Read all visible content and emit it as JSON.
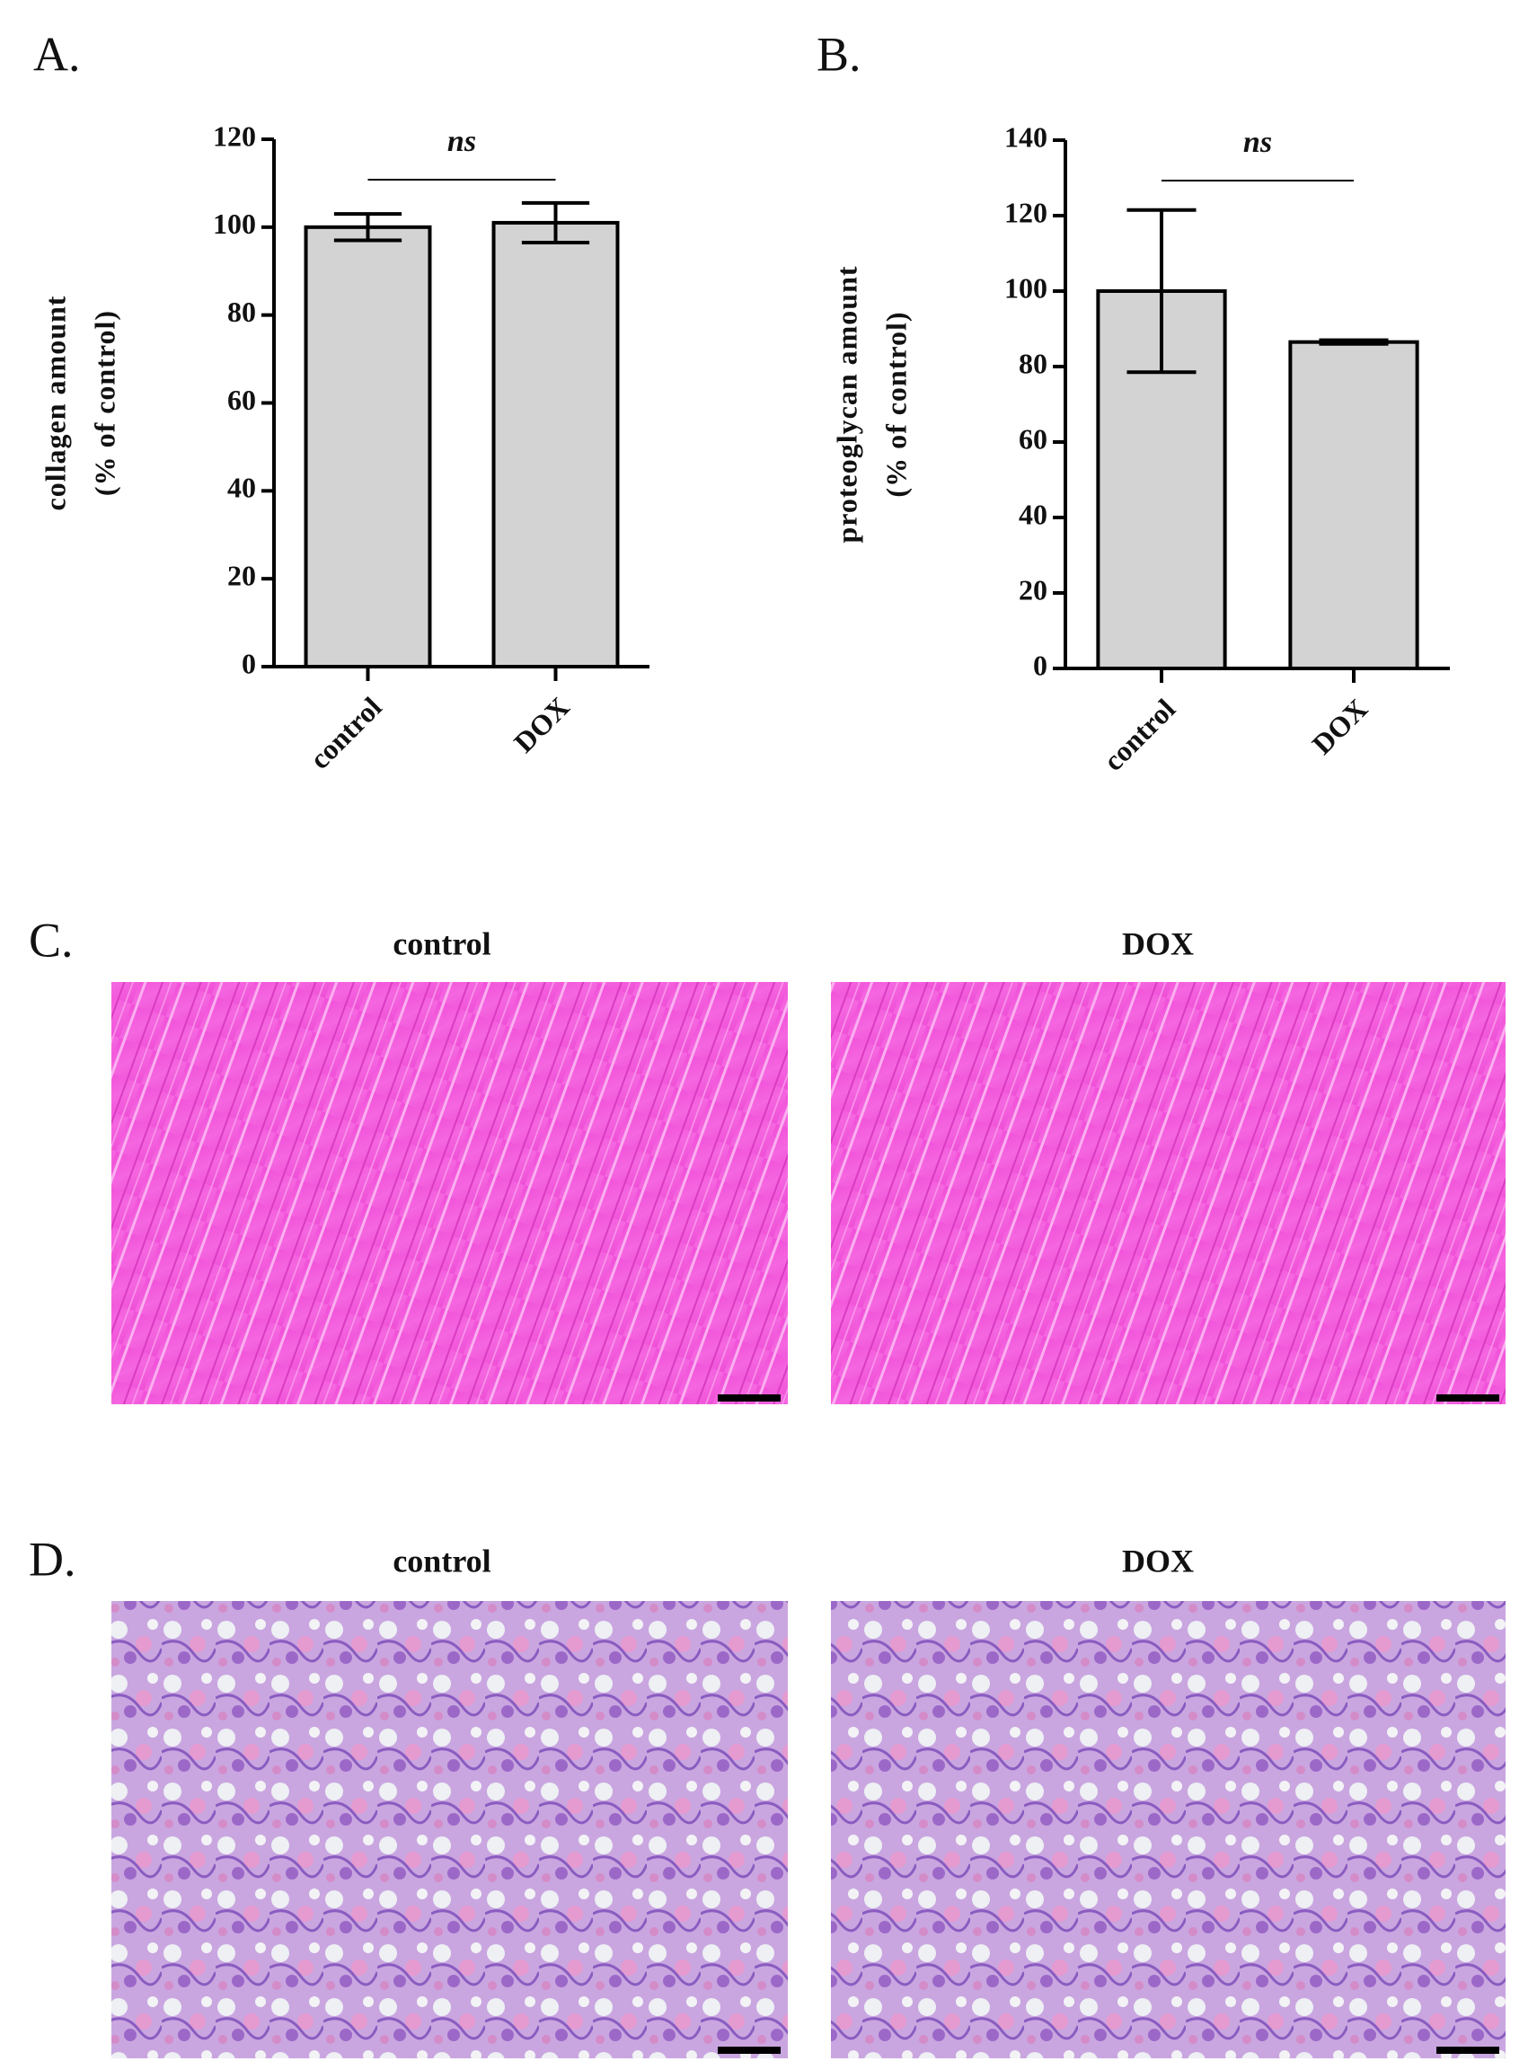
{
  "panel_labels": [
    "A.",
    "B.",
    "C.",
    "D."
  ],
  "images": [
    {
      "title": "control"
    },
    {
      "title": "DOX"
    },
    {
      "title": "control"
    },
    {
      "title": "DOX"
    }
  ],
  "chart_data": [
    {
      "type": "bar",
      "ylabel": [
        "collagen amount",
        "(% of control)"
      ],
      "annotation": "ns",
      "categories": [
        "control",
        "DOX"
      ],
      "values": [
        100,
        101
      ],
      "errors": [
        3,
        4.5
      ],
      "color": "#d3d3d3",
      "ylim": [
        0,
        120
      ],
      "yticks": [
        0,
        20,
        40,
        60,
        80,
        100,
        120
      ]
    },
    {
      "type": "bar",
      "ylabel": [
        "proteoglycan amount",
        "(% of control)"
      ],
      "annotation": "ns",
      "categories": [
        "control",
        "DOX"
      ],
      "values": [
        100,
        86.5
      ],
      "errors": [
        21.5,
        0.5
      ],
      "color": "#d3d3d3",
      "ylim": [
        0,
        140
      ],
      "yticks": [
        0,
        20,
        40,
        60,
        80,
        100,
        120,
        140
      ]
    }
  ]
}
